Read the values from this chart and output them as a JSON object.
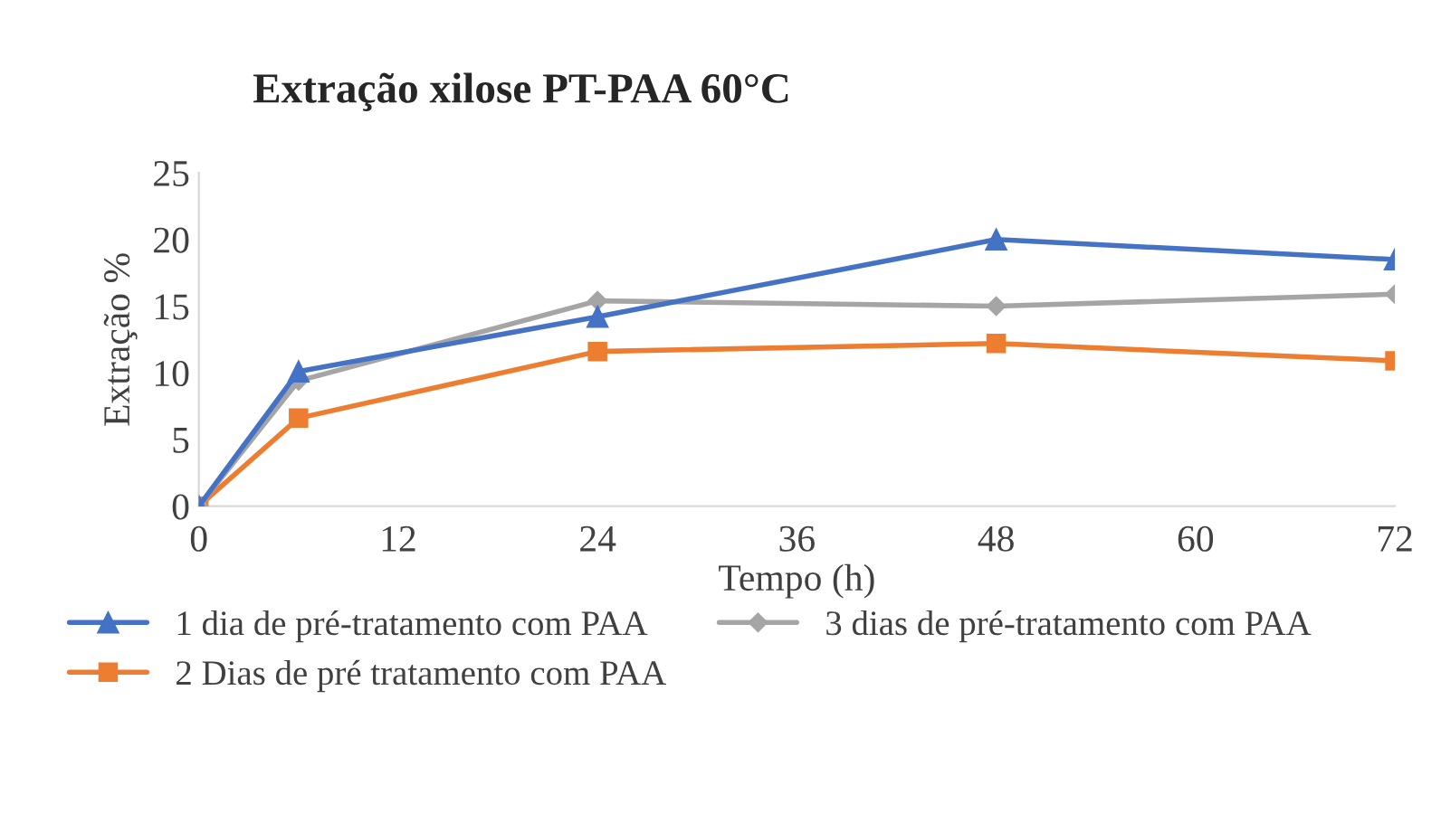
{
  "chart_data": {
    "type": "line",
    "title": "Extração xilose PT-PAA 60°C",
    "xlabel": "Tempo (h)",
    "ylabel": "Extração %",
    "x": [
      0,
      6,
      24,
      48,
      72
    ],
    "series": [
      {
        "name": "1 dia de pré-tratamento com PAA",
        "color": "#4472c4",
        "marker": "triangle",
        "values": [
          0,
          10.1,
          14.2,
          20.0,
          18.5
        ]
      },
      {
        "name": "3 dias de pré-tratamento com PAA",
        "color": "#a5a5a5",
        "marker": "diamond",
        "values": [
          0,
          9.4,
          15.4,
          15.0,
          15.9
        ]
      },
      {
        "name": "2 Dias de pré tratamento com PAA",
        "color": "#ed7d31",
        "marker": "square",
        "values": [
          0,
          6.6,
          11.6,
          12.2,
          10.9
        ]
      }
    ],
    "xlim": [
      0,
      72
    ],
    "xticks": [
      0,
      12,
      24,
      36,
      48,
      60,
      72
    ],
    "ylim": [
      0,
      25
    ],
    "yticks": [
      0,
      5,
      10,
      15,
      20,
      25
    ],
    "grid": false,
    "legend": "bottom",
    "line_style": "solid"
  }
}
